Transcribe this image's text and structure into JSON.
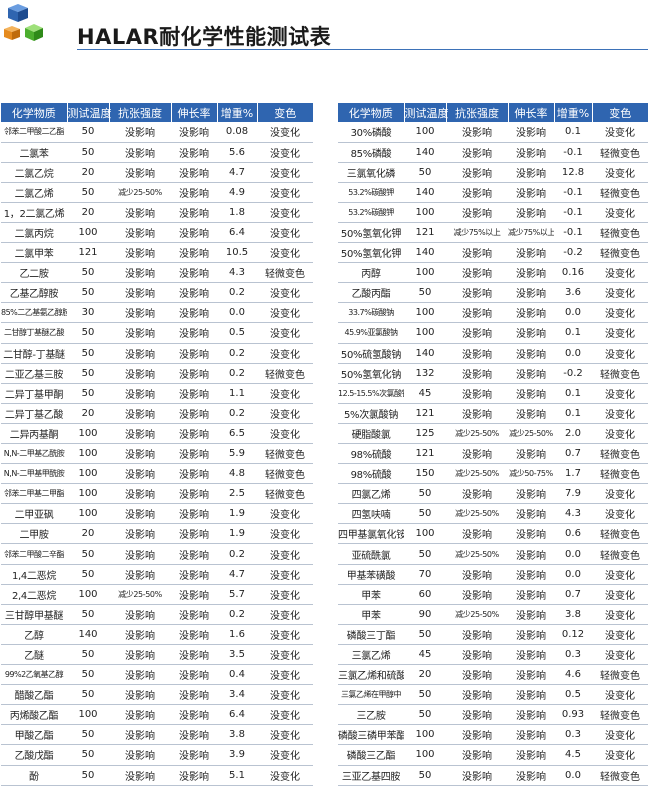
{
  "title": "HALAR耐化学性能测试表",
  "headers": [
    "化学物质",
    "测试温度",
    "抗张强度",
    "伸长率",
    "增重%",
    "变色"
  ],
  "left_rows": [
    [
      "邻苯二甲酸二乙酯",
      "50",
      "没影响",
      "没影响",
      "0.08",
      "没变化"
    ],
    [
      "二氯苯",
      "50",
      "没影响",
      "没影响",
      "5.6",
      "没变化"
    ],
    [
      "二氯乙烷",
      "20",
      "没影响",
      "没影响",
      "4.7",
      "没变化"
    ],
    [
      "二氯乙烯",
      "50",
      "减少25-50%",
      "没影响",
      "4.9",
      "没变化"
    ],
    [
      "1，2二氯乙烯",
      "20",
      "没影响",
      "没影响",
      "1.8",
      "没变化"
    ],
    [
      "二氯丙烷",
      "100",
      "没影响",
      "没影响",
      "6.4",
      "没变化"
    ],
    [
      "二氯甲苯",
      "121",
      "没影响",
      "没影响",
      "10.5",
      "没变化"
    ],
    [
      "乙二胺",
      "50",
      "没影响",
      "没影响",
      "4.3",
      "轻微变色"
    ],
    [
      "乙基乙醇胺",
      "50",
      "没影响",
      "没影响",
      "0.2",
      "没变化"
    ],
    [
      "85%二乙基氨乙醇胺",
      "30",
      "没影响",
      "没影响",
      "0.0",
      "没变化"
    ],
    [
      "二甘醇丁基醚乙酸",
      "50",
      "没影响",
      "没影响",
      "0.5",
      "没变化"
    ],
    [
      "二甘醇-丁基醚",
      "50",
      "没影响",
      "没影响",
      "0.2",
      "没变化"
    ],
    [
      "二亚乙基三胺",
      "50",
      "没影响",
      "没影响",
      "0.2",
      "轻微变色"
    ],
    [
      "二异丁基甲酮",
      "50",
      "没影响",
      "没影响",
      "1.1",
      "没变化"
    ],
    [
      "二异丁基乙酸",
      "20",
      "没影响",
      "没影响",
      "0.2",
      "没变化"
    ],
    [
      "二异丙基酮",
      "100",
      "没影响",
      "没影响",
      "6.5",
      "没变化"
    ],
    [
      "N,N-二甲基乙酰胺",
      "100",
      "没影响",
      "没影响",
      "5.9",
      "轻微变色"
    ],
    [
      "N,N-二甲基甲酰胺",
      "100",
      "没影响",
      "没影响",
      "4.8",
      "轻微变色"
    ],
    [
      "邻苯二甲基二甲酯",
      "100",
      "没影响",
      "没影响",
      "2.5",
      "轻微变色"
    ],
    [
      "二甲亚砜",
      "100",
      "没影响",
      "没影响",
      "1.9",
      "没变化"
    ],
    [
      "二甲胺",
      "20",
      "没影响",
      "没影响",
      "1.9",
      "没变化"
    ],
    [
      "邻苯二甲酸二辛酯",
      "50",
      "没影响",
      "没影响",
      "0.2",
      "没变化"
    ],
    [
      "1,4二恶烷",
      "50",
      "没影响",
      "没影响",
      "4.7",
      "没变化"
    ],
    [
      "2,4二恶烷",
      "100",
      "减少25-50%",
      "没影响",
      "5.7",
      "没变化"
    ],
    [
      "三甘醇甲基醚",
      "50",
      "没影响",
      "没影响",
      "0.2",
      "没变化"
    ],
    [
      "乙醇",
      "140",
      "没影响",
      "没影响",
      "1.6",
      "没变化"
    ],
    [
      "乙醚",
      "50",
      "没影响",
      "没影响",
      "3.5",
      "没变化"
    ],
    [
      "99%2乙氧基乙醇",
      "50",
      "没影响",
      "没影响",
      "0.4",
      "没变化"
    ],
    [
      "醋酸乙酯",
      "50",
      "没影响",
      "没影响",
      "3.4",
      "没变化"
    ],
    [
      "丙烯酸乙酯",
      "100",
      "没影响",
      "没影响",
      "6.4",
      "没变化"
    ],
    [
      "甲酸乙酯",
      "50",
      "没影响",
      "没影响",
      "3.8",
      "没变化"
    ],
    [
      "乙酸戊酯",
      "50",
      "没影响",
      "没影响",
      "3.9",
      "没变化"
    ],
    [
      "酚",
      "50",
      "没影响",
      "没影响",
      "5.1",
      "没变化"
    ]
  ],
  "right_rows": [
    [
      "30%磷酸",
      "100",
      "没影响",
      "没影响",
      "0.1",
      "没变化"
    ],
    [
      "85%磷酸",
      "140",
      "没影响",
      "没影响",
      "-0.1",
      "轻微变色"
    ],
    [
      "三氯氧化磷",
      "50",
      "没影响",
      "没影响",
      "12.8",
      "没变化"
    ],
    [
      "53.2%碳酸钾",
      "140",
      "没影响",
      "没影响",
      "-0.1",
      "轻微变色"
    ],
    [
      "53.2%碳酸钾",
      "100",
      "没影响",
      "没影响",
      "-0.1",
      "没变化"
    ],
    [
      "50%氢氧化钾",
      "121",
      "减少75%以上",
      "减少75%以上",
      "-0.1",
      "轻微变色"
    ],
    [
      "50%氢氧化钾",
      "140",
      "没影响",
      "没影响",
      "-0.2",
      "轻微变色"
    ],
    [
      "丙醇",
      "100",
      "没影响",
      "没影响",
      "0.16",
      "没变化"
    ],
    [
      "乙酸丙酯",
      "50",
      "没影响",
      "没影响",
      "3.6",
      "没变化"
    ],
    [
      "33.7%碳酸钠",
      "100",
      "没影响",
      "没影响",
      "0.0",
      "没变化"
    ],
    [
      "45.9%亚氯酸钠",
      "100",
      "没影响",
      "没影响",
      "0.1",
      "没变化"
    ],
    [
      "50%硫氢酸钠",
      "140",
      "没影响",
      "没影响",
      "0.0",
      "没变化"
    ],
    [
      "50%氢氧化钠",
      "132",
      "没影响",
      "没影响",
      "-0.2",
      "轻微变色"
    ],
    [
      "12.5-15.5%次氯酸钠",
      "45",
      "没影响",
      "没影响",
      "0.1",
      "没变化"
    ],
    [
      "5%次氯酸钠",
      "121",
      "没影响",
      "没影响",
      "0.1",
      "没变化"
    ],
    [
      "硬脂酸氯",
      "125",
      "减少25-50%",
      "减少25-50%",
      "2.0",
      "没变化"
    ],
    [
      "98%硫酸",
      "121",
      "没影响",
      "没影响",
      "0.7",
      "轻微变色"
    ],
    [
      "98%硫酸",
      "150",
      "减少25-50%",
      "减少50-75%",
      "1.7",
      "轻微变色"
    ],
    [
      "四氯乙烯",
      "50",
      "没影响",
      "没影响",
      "7.9",
      "没变化"
    ],
    [
      "四氢呋喃",
      "50",
      "减少25-50%",
      "没影响",
      "4.3",
      "没变化"
    ],
    [
      "四甲基氯氧化铵",
      "100",
      "没影响",
      "没影响",
      "0.6",
      "轻微变色"
    ],
    [
      "亚硫酰氯",
      "50",
      "减少25-50%",
      "没影响",
      "0.0",
      "轻微变色"
    ],
    [
      "甲基苯磺酸",
      "70",
      "没影响",
      "没影响",
      "0.0",
      "没变化"
    ],
    [
      "甲苯",
      "60",
      "没影响",
      "没影响",
      "0.7",
      "没变化"
    ],
    [
      "甲苯",
      "90",
      "减少25-50%",
      "没影响",
      "3.8",
      "没变化"
    ],
    [
      "磷酸三丁酯",
      "50",
      "没影响",
      "没影响",
      "0.12",
      "没变化"
    ],
    [
      "三氯乙烯",
      "45",
      "没影响",
      "没影响",
      "0.3",
      "没变化"
    ],
    [
      "三氯乙烯和硫酸",
      "20",
      "没影响",
      "没影响",
      "4.6",
      "轻微变色"
    ],
    [
      "三氯乙烯在甲醇中",
      "50",
      "没影响",
      "没影响",
      "0.5",
      "没变化"
    ],
    [
      "三乙胺",
      "50",
      "没影响",
      "没影响",
      "0.93",
      "轻微变色"
    ],
    [
      "磷酸三磷甲苯酯",
      "100",
      "没影响",
      "没影响",
      "0.3",
      "没变化"
    ],
    [
      "磷酸三乙酯",
      "100",
      "没影响",
      "没影响",
      "4.5",
      "没变化"
    ],
    [
      "三亚乙基四胺",
      "50",
      "没影响",
      "没影响",
      "0.0",
      "轻微变色"
    ]
  ]
}
